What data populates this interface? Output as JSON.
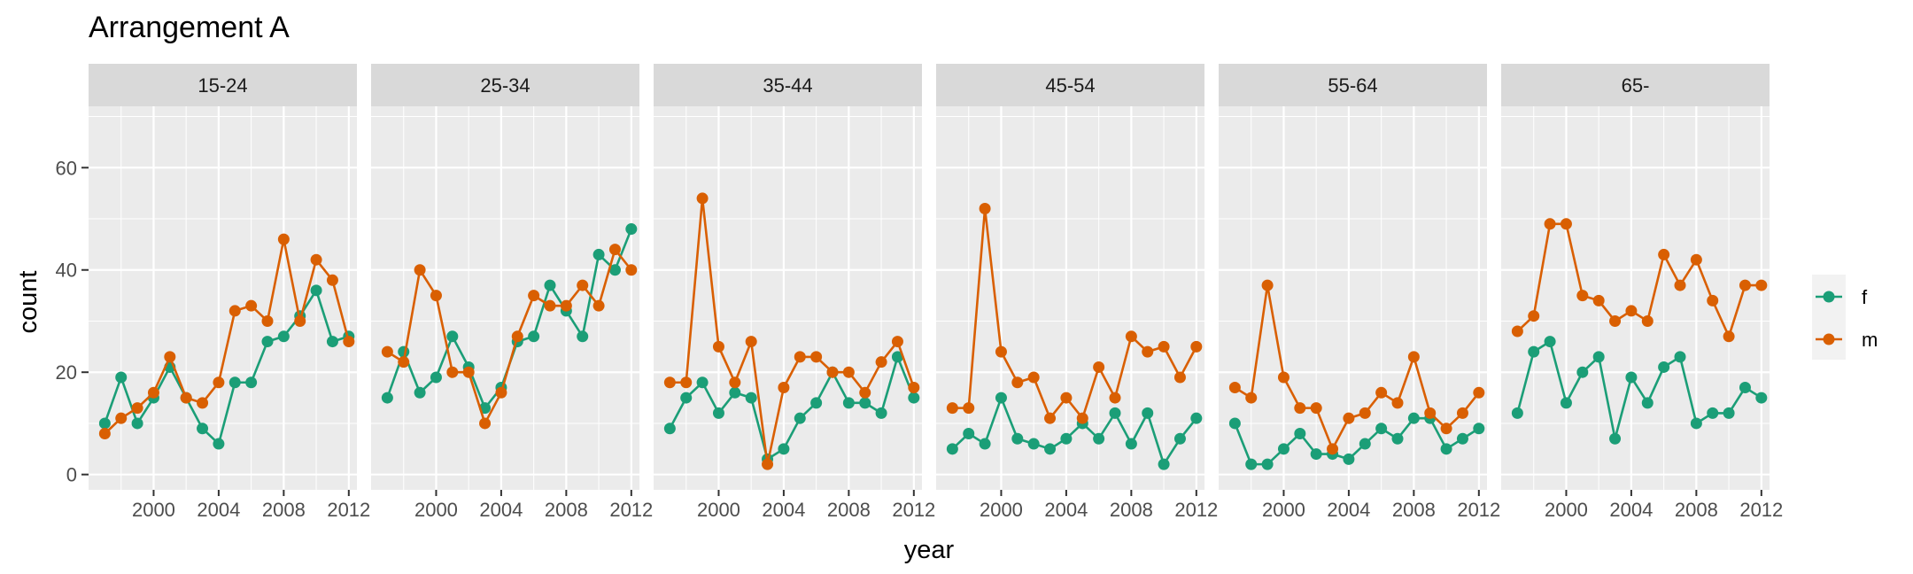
{
  "chart_data": {
    "type": "line",
    "title": "Arrangement A",
    "xlabel": "year",
    "ylabel": "count",
    "xlim": [
      1996,
      2012.5
    ],
    "ylim": [
      -3,
      72
    ],
    "x_ticks": [
      2000,
      2004,
      2008,
      2012
    ],
    "y_ticks": [
      0,
      20,
      40,
      60
    ],
    "grid": true,
    "legend_position": "right",
    "colors": {
      "f": "#1b9e77",
      "m": "#d95f02",
      "panel_bg": "#ebebeb",
      "strip_bg": "#d9d9d9",
      "grid": "#ffffff"
    },
    "x": [
      1997,
      1998,
      1999,
      2000,
      2001,
      2002,
      2003,
      2004,
      2005,
      2006,
      2007,
      2008,
      2009,
      2010,
      2011,
      2012
    ],
    "facets": [
      {
        "label": "15-24",
        "series": [
          {
            "name": "f",
            "values": [
              10,
              19,
              10,
              15,
              21,
              15,
              9,
              6,
              18,
              18,
              26,
              27,
              31,
              36,
              26,
              27
            ]
          },
          {
            "name": "m",
            "values": [
              8,
              11,
              13,
              16,
              23,
              15,
              14,
              18,
              32,
              33,
              30,
              46,
              30,
              42,
              38,
              26
            ]
          }
        ]
      },
      {
        "label": "25-34",
        "series": [
          {
            "name": "f",
            "values": [
              15,
              24,
              16,
              19,
              27,
              21,
              13,
              17,
              26,
              27,
              37,
              32,
              27,
              43,
              40,
              48
            ]
          },
          {
            "name": "m",
            "values": [
              24,
              22,
              40,
              35,
              20,
              20,
              10,
              16,
              27,
              35,
              33,
              33,
              37,
              33,
              44,
              40
            ]
          }
        ]
      },
      {
        "label": "35-44",
        "series": [
          {
            "name": "f",
            "values": [
              9,
              15,
              18,
              12,
              16,
              15,
              3,
              5,
              11,
              14,
              20,
              14,
              14,
              12,
              23,
              15
            ]
          },
          {
            "name": "m",
            "values": [
              18,
              18,
              54,
              25,
              18,
              26,
              2,
              17,
              23,
              23,
              20,
              20,
              16,
              22,
              26,
              17
            ]
          }
        ]
      },
      {
        "label": "45-54",
        "series": [
          {
            "name": "f",
            "values": [
              5,
              8,
              6,
              15,
              7,
              6,
              5,
              7,
              10,
              7,
              12,
              6,
              12,
              2,
              7,
              11
            ]
          },
          {
            "name": "m",
            "values": [
              13,
              13,
              52,
              24,
              18,
              19,
              11,
              15,
              11,
              21,
              15,
              27,
              24,
              25,
              19,
              25
            ]
          }
        ]
      },
      {
        "label": "55-64",
        "series": [
          {
            "name": "f",
            "values": [
              10,
              2,
              2,
              5,
              8,
              4,
              4,
              3,
              6,
              9,
              7,
              11,
              11,
              5,
              7,
              9
            ]
          },
          {
            "name": "m",
            "values": [
              17,
              15,
              37,
              19,
              13,
              13,
              5,
              11,
              12,
              16,
              14,
              23,
              12,
              9,
              12,
              16
            ]
          }
        ]
      },
      {
        "label": "65-",
        "series": [
          {
            "name": "f",
            "values": [
              12,
              24,
              26,
              14,
              20,
              23,
              7,
              19,
              14,
              21,
              23,
              10,
              12,
              12,
              17,
              15
            ]
          },
          {
            "name": "m",
            "values": [
              28,
              31,
              49,
              49,
              35,
              34,
              30,
              32,
              30,
              43,
              37,
              42,
              34,
              27,
              37,
              37
            ]
          }
        ]
      }
    ],
    "legend": [
      {
        "name": "f"
      },
      {
        "name": "m"
      }
    ]
  }
}
